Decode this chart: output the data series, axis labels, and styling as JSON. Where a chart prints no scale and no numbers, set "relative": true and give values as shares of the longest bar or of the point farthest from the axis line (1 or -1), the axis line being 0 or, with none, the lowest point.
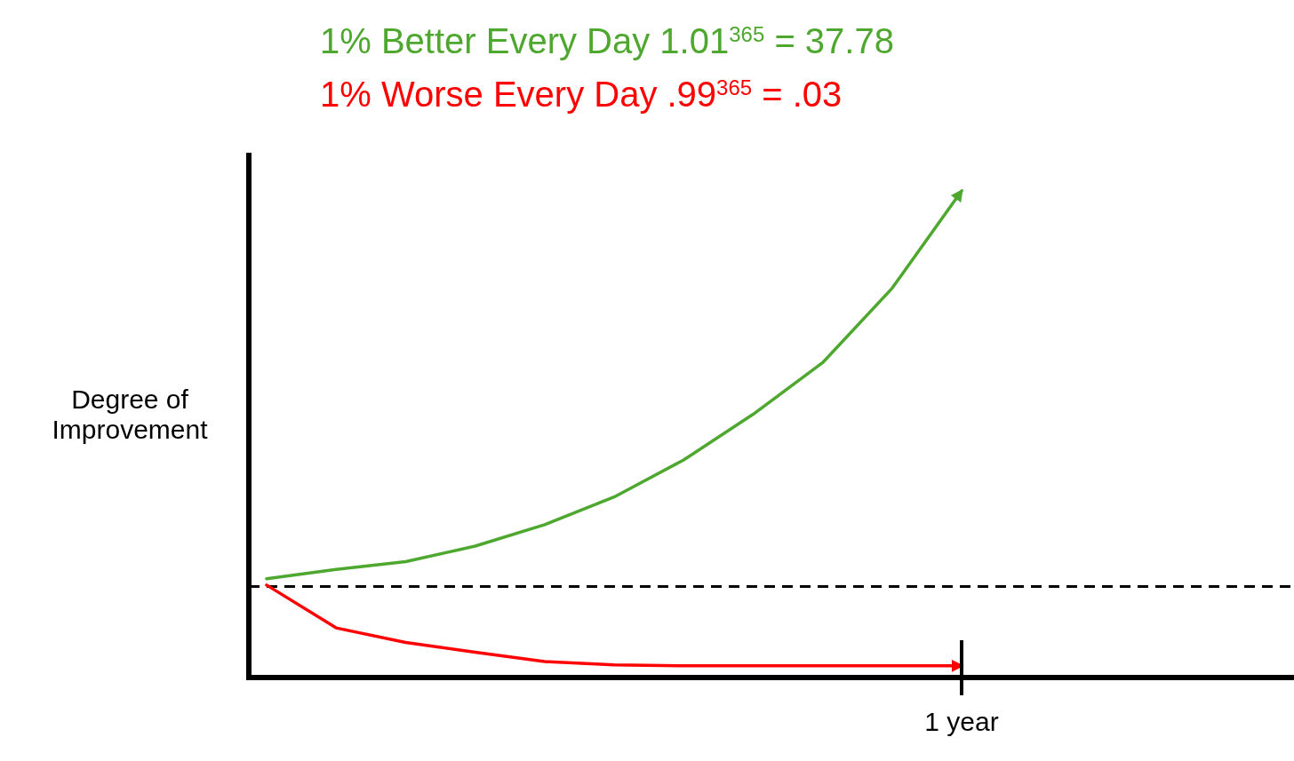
{
  "chart_data": {
    "type": "line",
    "title": "1% Better Every Day 1.01$^{365}$ = 37.78",
    "subtitle": "1% Worse Every Day .99$^{365}$ = .03",
    "ylabel": "Degree of Improvement",
    "relative": true,
    "annotations": [
      "1 year"
    ],
    "marker": "none",
    "line_style": "solid",
    "categories": [
      null,
      null,
      null,
      null,
      null,
      null,
      null,
      null,
      null,
      null,
      null
    ],
    "series": [
      {
        "color": "#4ea72e",
        "values": [
          0.203,
          0.222,
          0.238,
          0.27,
          0.314,
          0.371,
          0.447,
          0.541,
          0.647,
          0.8,
          1
        ]
      },
      {
        "color": "#ff0000",
        "values": [
          0.19,
          0.102,
          0.072,
          0.052,
          0.033,
          0.026,
          0.024,
          0.024,
          0.024,
          0.024,
          0.024
        ]
      }
    ],
    "ref_lines": [
      {
        "axis": "y",
        "value": 0.187,
        "color": "#000000",
        "line_style": "dashed"
      }
    ]
  }
}
